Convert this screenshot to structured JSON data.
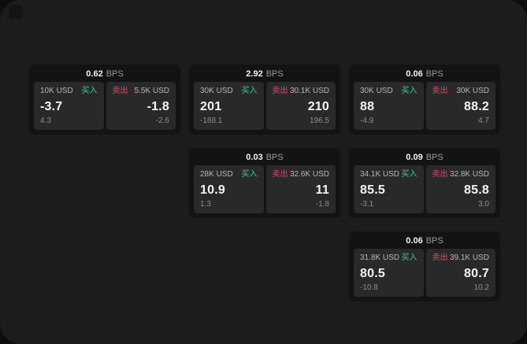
{
  "window": {
    "corner_button": ""
  },
  "colors": {
    "outer_bg": "#0d0d0d",
    "panel_bg": "#1c1c1d",
    "card_bg": "#131314",
    "cell_bg": "#29292b",
    "buy_green": "#3ecf8e",
    "sell_red": "#d94b5e",
    "value_white": "#f4f5f6",
    "label_gray": "#b5b7b9",
    "dim_gray": "#8b8d90"
  },
  "labels": {
    "bps_unit": "BPS",
    "buy": "买入",
    "sell": "卖出"
  },
  "cards": [
    {
      "bps": "0.62",
      "grid": {
        "row": 1,
        "col": 1
      },
      "buy": {
        "size": "10K USD",
        "price": "-3.7",
        "delta": "4.3"
      },
      "sell": {
        "size": "5.5K USD",
        "price": "-1.8",
        "delta": "-2.6"
      }
    },
    {
      "bps": "2.92",
      "grid": {
        "row": 1,
        "col": 2
      },
      "buy": {
        "size": "30K USD",
        "price": "201",
        "delta": "-188.1"
      },
      "sell": {
        "size": "30.1K USD",
        "price": "210",
        "delta": "196.5"
      }
    },
    {
      "bps": "0.06",
      "grid": {
        "row": 1,
        "col": 3
      },
      "buy": {
        "size": "30K USD",
        "price": "88",
        "delta": "-4.9"
      },
      "sell": {
        "size": "30K USD",
        "price": "88.2",
        "delta": "4.7"
      }
    },
    {
      "bps": "0.03",
      "grid": {
        "row": 2,
        "col": 2
      },
      "buy": {
        "size": "28K USD",
        "price": "10.9",
        "delta": "1.3"
      },
      "sell": {
        "size": "32.6K USD",
        "price": "11",
        "delta": "-1.8"
      }
    },
    {
      "bps": "0.09",
      "grid": {
        "row": 2,
        "col": 3
      },
      "buy": {
        "size": "34.1K USD",
        "price": "85.5",
        "delta": "-3.1"
      },
      "sell": {
        "size": "32.8K USD",
        "price": "85.8",
        "delta": "3.0"
      }
    },
    {
      "bps": "0.06",
      "grid": {
        "row": 3,
        "col": 3
      },
      "buy": {
        "size": "31.8K USD",
        "price": "80.5",
        "delta": "-10.8"
      },
      "sell": {
        "size": "39.1K USD",
        "price": "80.7",
        "delta": "10.2"
      }
    }
  ]
}
